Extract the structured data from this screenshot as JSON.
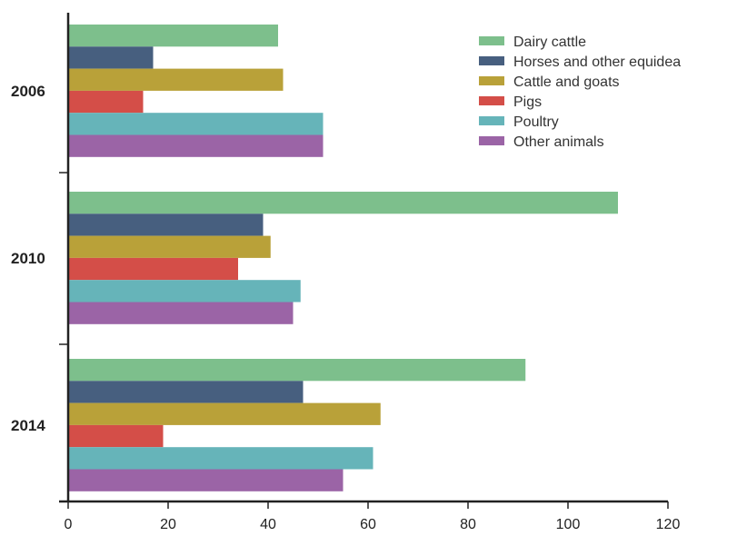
{
  "chart_data": {
    "type": "bar",
    "orientation": "horizontal",
    "title": "",
    "xlabel": "",
    "ylabel": "",
    "categories": [
      "2006",
      "2010",
      "2014"
    ],
    "xlim": [
      0,
      120
    ],
    "x_ticks": [
      0,
      20,
      40,
      60,
      80,
      100,
      120
    ],
    "grid": false,
    "legend_position": "top-right",
    "series": [
      {
        "name": "Dairy cattle",
        "color": "#7dbf8c",
        "values": [
          42,
          110,
          91.5
        ]
      },
      {
        "name": "Horses and other equidea",
        "color": "#475f7f",
        "values": [
          17,
          39,
          47
        ]
      },
      {
        "name": "Cattle and goats",
        "color": "#b9a139",
        "values": [
          43,
          40.5,
          62.5
        ]
      },
      {
        "name": "Pigs",
        "color": "#d44e48",
        "values": [
          15,
          34,
          19
        ]
      },
      {
        "name": "Poultry",
        "color": "#66b4b9",
        "values": [
          51,
          46.5,
          61
        ]
      },
      {
        "name": "Other animals",
        "color": "#9b64a6",
        "values": [
          51,
          45,
          55
        ]
      }
    ]
  }
}
